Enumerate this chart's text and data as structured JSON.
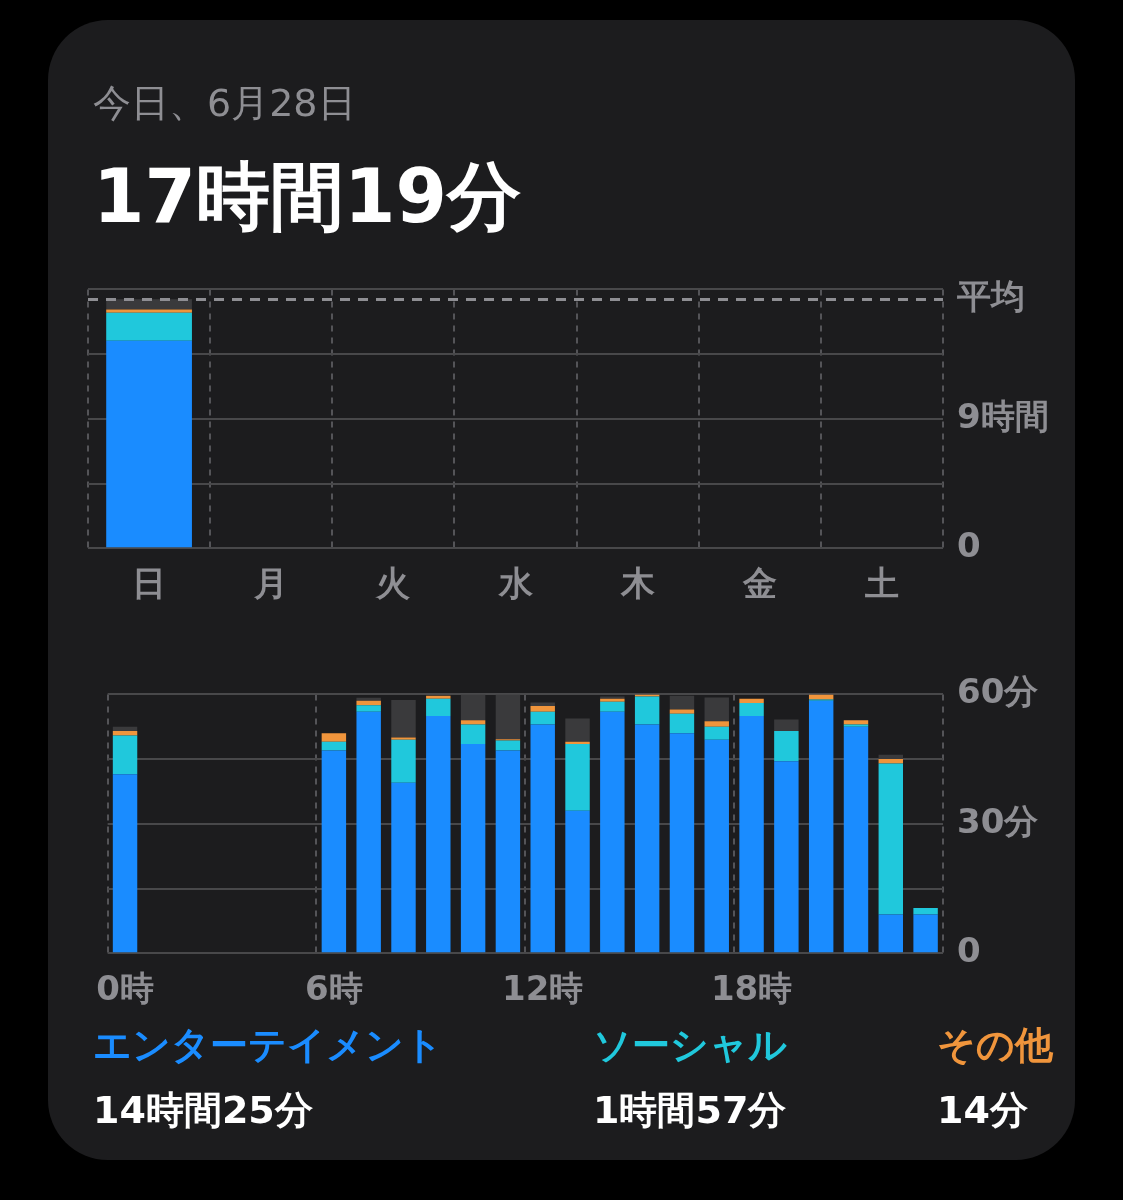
{
  "chart_data": [
    {
      "type": "bar",
      "title": "17時間19分",
      "subtitle": "今日、6月28日",
      "stacked": true,
      "categories": [
        "日",
        "月",
        "火",
        "水",
        "木",
        "金",
        "土"
      ],
      "series": [
        {
          "color": "#1a8cff",
          "values": [
            14.42,
            null,
            null,
            null,
            null,
            null,
            null
          ]
        },
        {
          "color": "#20c8dc",
          "values": [
            1.95,
            null,
            null,
            null,
            null,
            null,
            null
          ]
        },
        {
          "color": "#f0953c",
          "values": [
            0.23,
            null,
            null,
            null,
            null,
            null,
            null
          ]
        },
        {
          "color": "#3a3a3c",
          "values": [
            0.72,
            null,
            null,
            null,
            null,
            null,
            null
          ]
        }
      ],
      "ylim": [
        0,
        18
      ],
      "yticks": [
        0,
        {
          "value": 4.5,
          "label": null
        },
        {
          "value": 9,
          "label": "9時間"
        },
        {
          "value": 13.5,
          "label": null
        },
        {
          "value": 18,
          "label": null
        }
      ],
      "ref_lines": [
        {
          "axis": "y",
          "value": 17.3,
          "label": "平均",
          "line_style": "dashed",
          "color": "#8e8e93"
        }
      ],
      "grid": true
    },
    {
      "type": "bar",
      "stacked": true,
      "categories": [
        "0時",
        null,
        null,
        null,
        null,
        null,
        "6時",
        null,
        null,
        null,
        null,
        null,
        "12時",
        null,
        null,
        null,
        null,
        null,
        "18時",
        null,
        null,
        null,
        null,
        null
      ],
      "series": [
        {
          "name": "エンターテイメント",
          "color": "#1a8cff",
          "values": [
            41.5,
            null,
            null,
            null,
            null,
            null,
            47,
            56,
            39.5,
            55,
            48.5,
            47,
            53,
            33,
            56,
            53,
            51,
            49.5,
            55,
            44.5,
            58.5,
            52.5,
            9,
            9
          ]
        },
        {
          "name": "ソーシャル",
          "color": "#20c8dc",
          "values": [
            9,
            null,
            null,
            null,
            null,
            null,
            2,
            1.5,
            10,
            4,
            4.5,
            2.3,
            3,
            15.5,
            2.3,
            6.5,
            4.5,
            3,
            3,
            7,
            0.3,
            0.5,
            35,
            1.5
          ]
        },
        {
          "name": "その他",
          "color": "#f0953c",
          "values": [
            1,
            null,
            null,
            null,
            null,
            null,
            2,
            1,
            0.5,
            0.7,
            1,
            0.3,
            1.3,
            0.5,
            0.7,
            0.5,
            1,
            1.3,
            1,
            null,
            1.2,
            1,
            1,
            null
          ]
        },
        {
          "color": "#3a3a3c",
          "values": [
            1,
            null,
            null,
            null,
            null,
            null,
            null,
            0.7,
            8.7,
            null,
            6,
            10.4,
            0.8,
            5.4,
            0.5,
            null,
            3.2,
            5.5,
            null,
            2.7,
            null,
            null,
            1,
            null
          ]
        }
      ],
      "ylim": [
        0,
        60
      ],
      "yticks": [
        0,
        {
          "value": 15,
          "label": null
        },
        {
          "value": 30,
          "label": "30分"
        },
        {
          "value": 45,
          "label": null
        },
        {
          "value": 60,
          "label": "60分"
        }
      ],
      "annotations": [
        "14時間25分",
        "1時間57分",
        "14分"
      ],
      "grid": true
    }
  ]
}
